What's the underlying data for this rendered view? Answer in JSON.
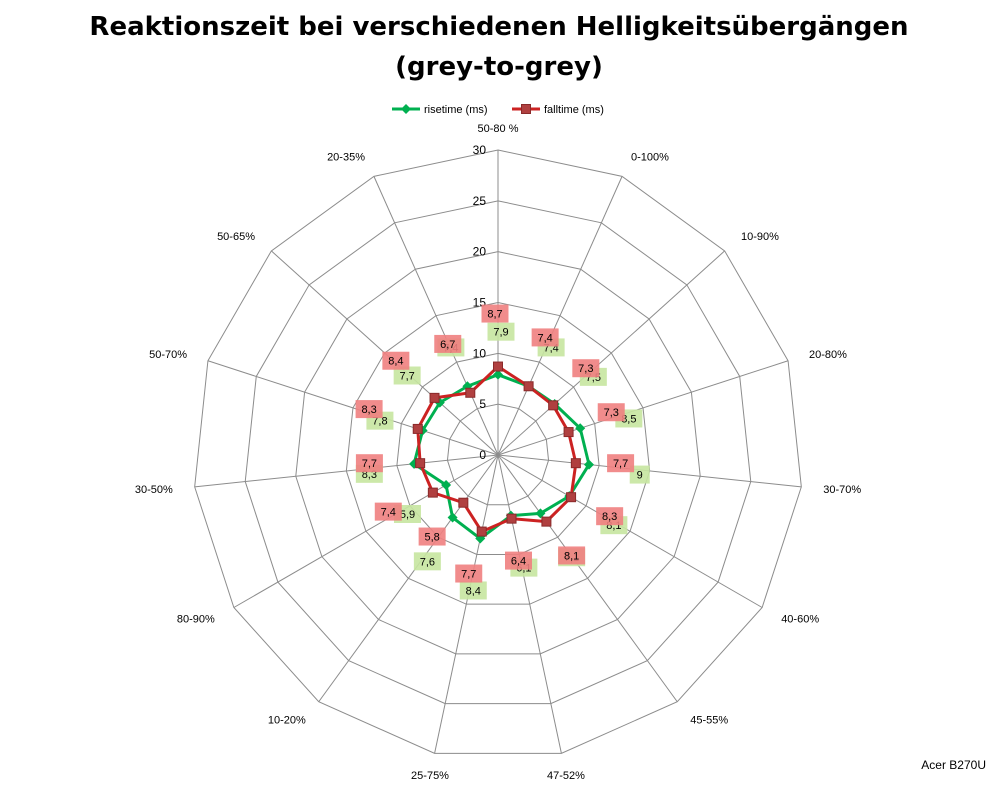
{
  "chart_data": {
    "type": "radar",
    "title": "Reaktionszeit bei verschiedenen Helligkeitsübergängen",
    "subtitle": "(grey-to-grey)",
    "categories": [
      "50-80 %",
      "0-100%",
      "10-90%",
      "20-80%",
      "30-70%",
      "40-60%",
      "45-55%",
      "47-52%",
      "25-75%",
      "10-20%",
      "80-90%",
      "30-50%",
      "50-70%",
      "50-65%",
      "20-35%"
    ],
    "series": [
      {
        "name": "risetime (ms)",
        "color": "#00b050",
        "label_bg": "#c6e6a0",
        "marker": "diamond",
        "values": [
          7.9,
          7.4,
          7.5,
          8.5,
          9.0,
          8.1,
          7.1,
          6.1,
          8.4,
          7.6,
          5.9,
          8.3,
          7.8,
          7.7,
          7.4
        ]
      },
      {
        "name": "falltime (ms)",
        "color": "#cc2222",
        "label_bg": "#f08080",
        "marker": "square",
        "values": [
          8.7,
          7.4,
          7.3,
          7.3,
          7.7,
          8.3,
          8.1,
          6.4,
          7.7,
          5.8,
          7.4,
          7.7,
          8.3,
          8.4,
          6.7
        ]
      }
    ],
    "data_labels": {
      "risetime (ms)": [
        "7,9",
        "7,4",
        "7,5",
        "8,5",
        "9",
        "8,1",
        "7,1",
        "6,1",
        "8,4",
        "7,6",
        "5,9",
        "8,3",
        "7,8",
        "7,7",
        "7,4"
      ],
      "falltime (ms)": [
        "8,7",
        "7,4",
        "7,3",
        "7,3",
        "7,7",
        "8,3",
        "8,1",
        "6,4",
        "7,7",
        "5,8",
        "7,4",
        "7,7",
        "8,3",
        "8,4",
        "6,7"
      ]
    },
    "rlim": [
      0,
      30
    ],
    "r_ticks": [
      0,
      5,
      10,
      15,
      20,
      25,
      30
    ],
    "legend": "top",
    "grid": true
  },
  "credit": "Acer B270U"
}
